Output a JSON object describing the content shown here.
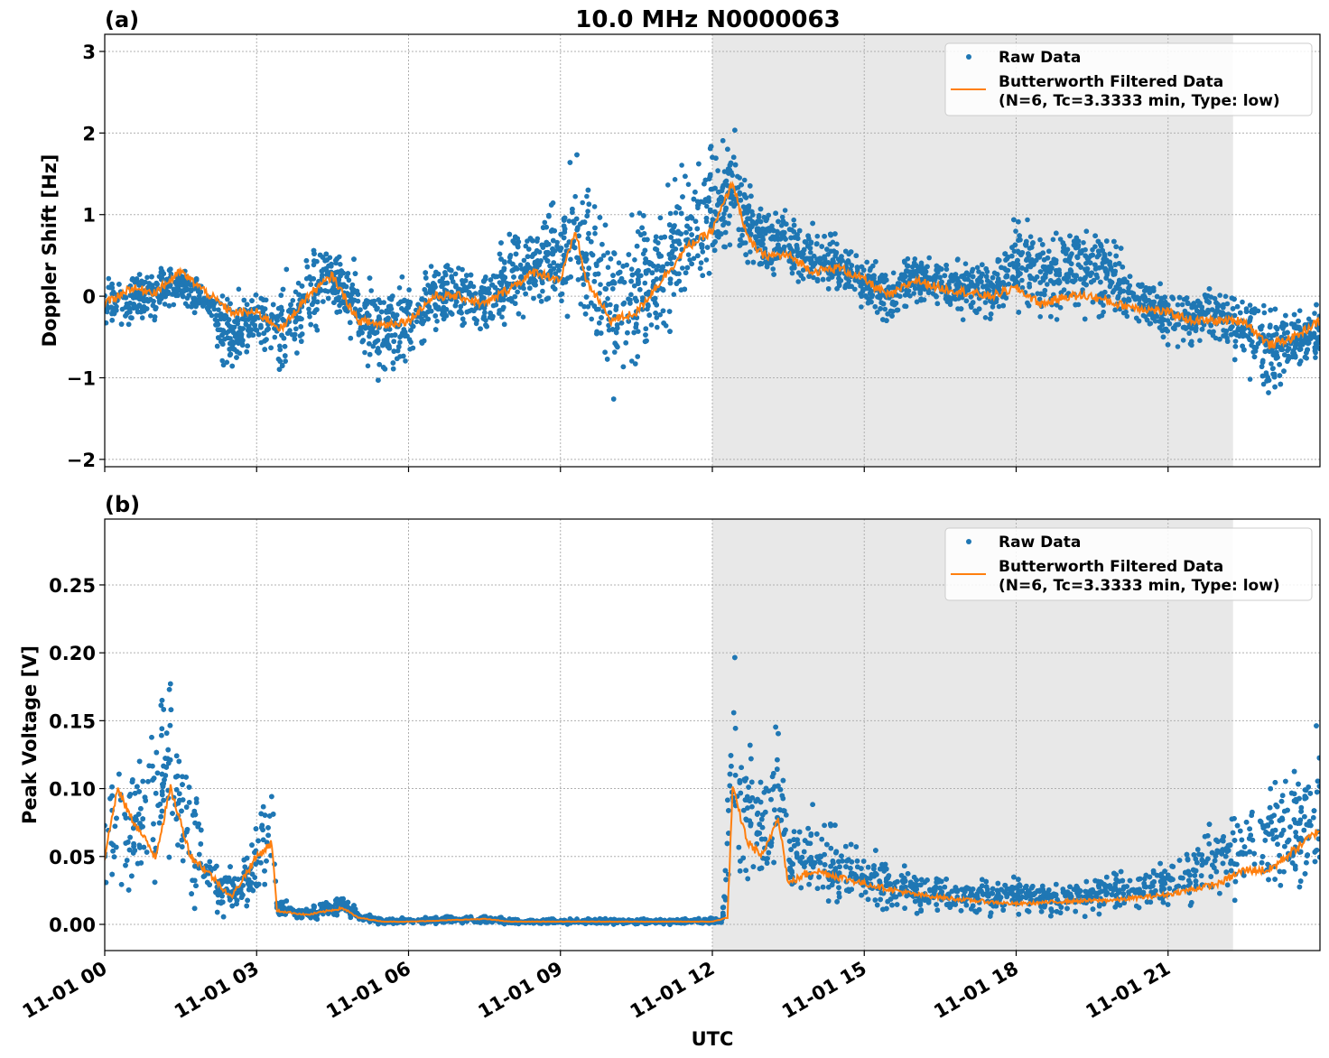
{
  "title": "10.0 MHz N0000063",
  "xlabel": "UTC",
  "colors": {
    "raw": "#1f77b4",
    "filtered": "#ff7f0e",
    "shade": "#e8e8e8"
  },
  "legend": {
    "raw": "Raw Data",
    "filtered_line1": "Butterworth Filtered Data",
    "filtered_line2": "(N=6, Tc=3.3333 min, Type: low)",
    "placement": "top-right"
  },
  "x_ticks": [
    "11-01 00",
    "11-01 03",
    "11-01 06",
    "11-01 09",
    "11-01 12",
    "11-01 15",
    "11-01 18",
    "11-01 21"
  ],
  "chart_data": [
    {
      "type": "scatter+line",
      "panel_label": "(a)",
      "ylabel": "Doppler Shift [Hz]",
      "xlim": [
        "11-01 00:00",
        "11-02 00:00"
      ],
      "ylim": [
        -2.09,
        3.21
      ],
      "y_ticks": [
        "−2",
        "−1",
        "0",
        "1",
        "2",
        "3"
      ],
      "y_tick_values": [
        -2,
        -1,
        0,
        1,
        2,
        3
      ],
      "grid": true,
      "shaded_interval": [
        "11-01 12:00",
        "11-01 22:17"
      ],
      "series": [
        {
          "name": "Butterworth Filtered Data",
          "kind": "line",
          "x": [
            "11-01 00:00",
            "11-01 00:30",
            "11-01 01:00",
            "11-01 01:30",
            "11-01 02:00",
            "11-01 02:30",
            "11-01 03:00",
            "11-01 03:30",
            "11-01 04:00",
            "11-01 04:30",
            "11-01 05:00",
            "11-01 05:30",
            "11-01 06:00",
            "11-01 06:30",
            "11-01 07:00",
            "11-01 07:30",
            "11-01 08:00",
            "11-01 08:30",
            "11-01 09:00",
            "11-01 09:18",
            "11-01 09:30",
            "11-01 10:00",
            "11-01 10:30",
            "11-01 11:00",
            "11-01 11:30",
            "11-01 12:00",
            "11-01 12:24",
            "11-01 12:42",
            "11-01 13:00",
            "11-01 13:30",
            "11-01 14:00",
            "11-01 14:30",
            "11-01 15:00",
            "11-01 15:30",
            "11-01 16:00",
            "11-01 16:30",
            "11-01 17:00",
            "11-01 17:30",
            "11-01 18:00",
            "11-01 18:30",
            "11-01 19:00",
            "11-01 19:30",
            "11-01 20:00",
            "11-01 20:30",
            "11-01 21:00",
            "11-01 21:30",
            "11-01 22:00",
            "11-01 22:30",
            "11-01 23:00",
            "11-01 23:30",
            "11-02 00:00"
          ],
          "y": [
            -0.1,
            0.1,
            0.05,
            0.3,
            0.05,
            -0.2,
            -0.2,
            -0.4,
            0.0,
            0.25,
            -0.3,
            -0.35,
            -0.3,
            0.0,
            0.0,
            -0.1,
            0.1,
            0.3,
            0.2,
            0.8,
            0.2,
            -0.3,
            -0.2,
            0.2,
            0.6,
            0.8,
            1.4,
            0.7,
            0.5,
            0.5,
            0.3,
            0.35,
            0.2,
            0.0,
            0.2,
            0.1,
            0.05,
            0.0,
            0.1,
            -0.1,
            0.0,
            0.0,
            -0.1,
            -0.15,
            -0.2,
            -0.3,
            -0.3,
            -0.3,
            -0.6,
            -0.5,
            -0.3
          ]
        },
        {
          "name": "Raw Data",
          "kind": "scatter-envelope",
          "x": [
            "11-01 00:00",
            "11-01 01:00",
            "11-01 01:30",
            "11-01 02:00",
            "11-01 02:30",
            "11-01 03:00",
            "11-01 03:30",
            "11-01 04:00",
            "11-01 04:30",
            "11-01 05:00",
            "11-01 05:30",
            "11-01 06:00",
            "11-01 06:30",
            "11-01 07:00",
            "11-01 07:30",
            "11-01 08:00",
            "11-01 08:30",
            "11-01 09:00",
            "11-01 09:18",
            "11-01 09:36",
            "11-01 10:00",
            "11-01 10:30",
            "11-01 11:00",
            "11-01 11:30",
            "11-01 12:00",
            "11-01 12:24",
            "11-01 12:48",
            "11-01 13:18",
            "11-01 14:00",
            "11-01 14:30",
            "11-01 15:00",
            "11-01 15:30",
            "11-01 16:00",
            "11-01 16:30",
            "11-01 17:00",
            "11-01 17:30",
            "11-01 18:00",
            "11-01 18:30",
            "11-01 19:00",
            "11-01 19:30",
            "11-01 20:00",
            "11-01 20:30",
            "11-01 21:00",
            "11-01 21:30",
            "11-01 22:00",
            "11-01 22:30",
            "11-01 23:00",
            "11-01 23:30",
            "11-02 00:00"
          ],
          "low": [
            -0.45,
            -0.3,
            -0.1,
            -0.3,
            -1.1,
            -0.6,
            -1.2,
            -0.6,
            -0.2,
            -0.9,
            -1.1,
            -1.0,
            -0.5,
            -0.5,
            -0.6,
            -0.4,
            -0.3,
            -0.4,
            -0.2,
            -0.6,
            -1.3,
            -1.0,
            -0.5,
            -0.3,
            0.0,
            0.5,
            0.2,
            0.1,
            0.0,
            0.0,
            -0.2,
            -0.4,
            -0.1,
            -0.2,
            -0.3,
            -0.3,
            -0.3,
            -0.3,
            -0.3,
            -0.3,
            -0.4,
            -0.4,
            -0.7,
            -0.6,
            -0.6,
            -0.9,
            -1.4,
            -0.9,
            -0.8
          ],
          "high": [
            0.3,
            0.35,
            0.45,
            0.2,
            0.1,
            0.1,
            0.3,
            0.6,
            0.75,
            0.4,
            0.3,
            0.5,
            0.5,
            0.6,
            0.5,
            0.8,
            1.1,
            1.3,
            2.0,
            1.3,
            0.9,
            1.2,
            1.4,
            1.8,
            2.0,
            2.2,
            1.3,
            1.2,
            0.9,
            0.8,
            0.5,
            0.4,
            0.6,
            0.5,
            0.5,
            0.4,
            1.0,
            0.9,
            1.1,
            1.0,
            0.7,
            0.3,
            0.2,
            0.1,
            0.1,
            0.1,
            0.0,
            -0.1,
            -0.1
          ]
        }
      ]
    },
    {
      "type": "scatter+line",
      "panel_label": "(b)",
      "ylabel": "Peak Voltage [V]",
      "xlim": [
        "11-01 00:00",
        "11-02 00:00"
      ],
      "ylim": [
        -0.0193,
        0.2985
      ],
      "y_ticks": [
        "0.00",
        "0.05",
        "0.10",
        "0.15",
        "0.20",
        "0.25"
      ],
      "y_tick_values": [
        0,
        0.05,
        0.1,
        0.15,
        0.2,
        0.25
      ],
      "grid": true,
      "shaded_interval": [
        "11-01 12:00",
        "11-01 22:17"
      ],
      "series": [
        {
          "name": "Butterworth Filtered Data",
          "kind": "line",
          "x": [
            "11-01 00:00",
            "11-01 00:15",
            "11-01 00:30",
            "11-01 01:00",
            "11-01 01:18",
            "11-01 01:42",
            "11-01 02:00",
            "11-01 02:30",
            "11-01 03:00",
            "11-01 03:18",
            "11-01 03:24",
            "11-01 04:00",
            "11-01 04:42",
            "11-01 05:00",
            "11-01 05:30",
            "11-01 06:00",
            "11-01 07:30",
            "11-01 08:00",
            "11-01 12:00",
            "11-01 12:18",
            "11-01 12:24",
            "11-01 12:42",
            "11-01 13:00",
            "11-01 13:18",
            "11-01 13:30",
            "11-01 14:00",
            "11-01 15:00",
            "11-01 16:00",
            "11-01 17:00",
            "11-01 18:00",
            "11-01 19:00",
            "11-01 20:00",
            "11-01 21:00",
            "11-01 22:00",
            "11-01 22:30",
            "11-01 23:00",
            "11-01 23:30",
            "11-02 00:00"
          ],
          "y": [
            0.05,
            0.1,
            0.08,
            0.05,
            0.1,
            0.05,
            0.04,
            0.02,
            0.05,
            0.06,
            0.01,
            0.007,
            0.012,
            0.005,
            0.002,
            0.002,
            0.004,
            0.002,
            0.002,
            0.005,
            0.1,
            0.06,
            0.05,
            0.08,
            0.03,
            0.04,
            0.03,
            0.022,
            0.018,
            0.015,
            0.017,
            0.018,
            0.022,
            0.03,
            0.04,
            0.04,
            0.055,
            0.07
          ]
        },
        {
          "name": "Raw Data",
          "kind": "scatter-envelope",
          "x": [
            "11-01 00:00",
            "11-01 00:18",
            "11-01 00:36",
            "11-01 01:00",
            "11-01 01:18",
            "11-01 01:42",
            "11-01 02:00",
            "11-01 02:18",
            "11-01 02:42",
            "11-01 03:00",
            "11-01 03:18",
            "11-01 03:24",
            "11-01 04:00",
            "11-01 04:42",
            "11-01 05:00",
            "11-01 05:30",
            "11-01 07:30",
            "11-01 08:00",
            "11-01 12:12",
            "11-01 12:24",
            "11-01 12:36",
            "11-01 13:00",
            "11-01 13:18",
            "11-01 13:30",
            "11-01 14:00",
            "11-01 15:00",
            "11-01 16:00",
            "11-01 17:00",
            "11-01 18:00",
            "11-01 19:00",
            "11-01 20:00",
            "11-01 21:00",
            "11-01 22:00",
            "11-01 23:00",
            "11-02 00:00"
          ],
          "low": [
            0.015,
            0.02,
            0.02,
            0.02,
            0.03,
            0.01,
            0.01,
            0.005,
            0.005,
            0.01,
            0.02,
            0.005,
            0.003,
            0.005,
            0.001,
            0.0,
            0.0,
            0.0,
            0.0,
            0.0,
            0.02,
            0.02,
            0.03,
            0.01,
            0.01,
            0.008,
            0.006,
            0.005,
            0.005,
            0.005,
            0.006,
            0.01,
            0.015,
            0.02,
            0.02
          ],
          "high": [
            0.11,
            0.14,
            0.12,
            0.17,
            0.2,
            0.13,
            0.07,
            0.05,
            0.05,
            0.08,
            0.14,
            0.02,
            0.012,
            0.025,
            0.01,
            0.005,
            0.008,
            0.004,
            0.005,
            0.22,
            0.15,
            0.12,
            0.18,
            0.08,
            0.09,
            0.06,
            0.045,
            0.035,
            0.035,
            0.035,
            0.04,
            0.05,
            0.08,
            0.11,
            0.15
          ]
        }
      ]
    }
  ]
}
